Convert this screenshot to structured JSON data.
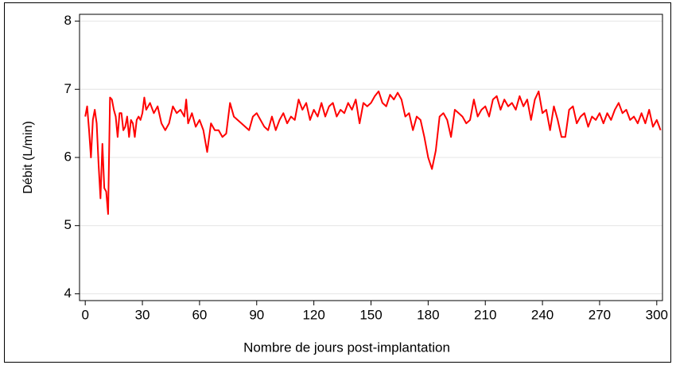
{
  "chart_data": {
    "type": "line",
    "xlabel": "Nombre de jours post-implantation",
    "ylabel": "Débit (L/min)",
    "color": "#ff0000",
    "grid": true,
    "xlim": [
      -3,
      303
    ],
    "xticks": [
      0,
      30,
      60,
      90,
      120,
      150,
      180,
      210,
      240,
      270,
      300
    ],
    "ylim": [
      3.9,
      8.1
    ],
    "yticks": [
      4,
      5,
      6,
      7,
      8
    ],
    "x": [
      0,
      1,
      2,
      3,
      4,
      5,
      6,
      7,
      8,
      9,
      10,
      11,
      12,
      13,
      14,
      15,
      16,
      17,
      18,
      19,
      20,
      21,
      22,
      23,
      24,
      25,
      26,
      27,
      28,
      29,
      30,
      31,
      32,
      34,
      36,
      38,
      40,
      42,
      44,
      46,
      48,
      50,
      52,
      53,
      54,
      56,
      58,
      60,
      62,
      64,
      66,
      68,
      70,
      72,
      74,
      76,
      78,
      82,
      86,
      88,
      90,
      92,
      94,
      96,
      98,
      100,
      102,
      104,
      106,
      108,
      110,
      112,
      114,
      116,
      118,
      120,
      122,
      124,
      126,
      128,
      130,
      132,
      134,
      136,
      138,
      140,
      142,
      144,
      146,
      148,
      150,
      152,
      154,
      156,
      158,
      160,
      162,
      164,
      166,
      168,
      170,
      172,
      174,
      176,
      178,
      180,
      182,
      184,
      186,
      188,
      190,
      192,
      194,
      196,
      198,
      200,
      202,
      204,
      206,
      208,
      210,
      212,
      214,
      216,
      218,
      220,
      222,
      224,
      226,
      228,
      230,
      232,
      234,
      236,
      238,
      240,
      242,
      244,
      246,
      248,
      250,
      252,
      254,
      256,
      258,
      260,
      262,
      264,
      266,
      268,
      270,
      272,
      274,
      276,
      278,
      280,
      282,
      284,
      286,
      288,
      290,
      292,
      294,
      296,
      298,
      300,
      302
    ],
    "values": [
      6.6,
      6.75,
      6.4,
      6.0,
      6.55,
      6.7,
      6.5,
      5.9,
      5.4,
      6.2,
      5.55,
      5.5,
      5.17,
      6.88,
      6.85,
      6.7,
      6.6,
      6.3,
      6.65,
      6.65,
      6.4,
      6.45,
      6.6,
      6.3,
      6.55,
      6.5,
      6.3,
      6.55,
      6.6,
      6.55,
      6.65,
      6.88,
      6.7,
      6.8,
      6.65,
      6.75,
      6.5,
      6.4,
      6.5,
      6.75,
      6.65,
      6.7,
      6.6,
      6.85,
      6.5,
      6.65,
      6.45,
      6.55,
      6.4,
      6.08,
      6.5,
      6.4,
      6.4,
      6.3,
      6.35,
      6.8,
      6.6,
      6.5,
      6.4,
      6.6,
      6.65,
      6.55,
      6.45,
      6.4,
      6.6,
      6.4,
      6.55,
      6.65,
      6.5,
      6.6,
      6.55,
      6.85,
      6.7,
      6.8,
      6.55,
      6.7,
      6.6,
      6.8,
      6.6,
      6.75,
      6.8,
      6.6,
      6.7,
      6.65,
      6.8,
      6.7,
      6.85,
      6.5,
      6.8,
      6.75,
      6.8,
      6.9,
      6.97,
      6.8,
      6.75,
      6.92,
      6.85,
      6.95,
      6.85,
      6.6,
      6.65,
      6.4,
      6.6,
      6.55,
      6.3,
      6.0,
      5.83,
      6.1,
      6.6,
      6.65,
      6.55,
      6.3,
      6.7,
      6.65,
      6.6,
      6.5,
      6.55,
      6.85,
      6.6,
      6.7,
      6.75,
      6.6,
      6.85,
      6.9,
      6.7,
      6.85,
      6.75,
      6.8,
      6.7,
      6.9,
      6.75,
      6.85,
      6.55,
      6.85,
      6.97,
      6.65,
      6.7,
      6.4,
      6.75,
      6.55,
      6.3,
      6.3,
      6.7,
      6.75,
      6.5,
      6.6,
      6.65,
      6.45,
      6.6,
      6.55,
      6.65,
      6.5,
      6.65,
      6.55,
      6.7,
      6.8,
      6.65,
      6.7,
      6.55,
      6.6,
      6.5,
      6.65,
      6.5,
      6.7,
      6.45,
      6.55,
      6.4
    ]
  }
}
